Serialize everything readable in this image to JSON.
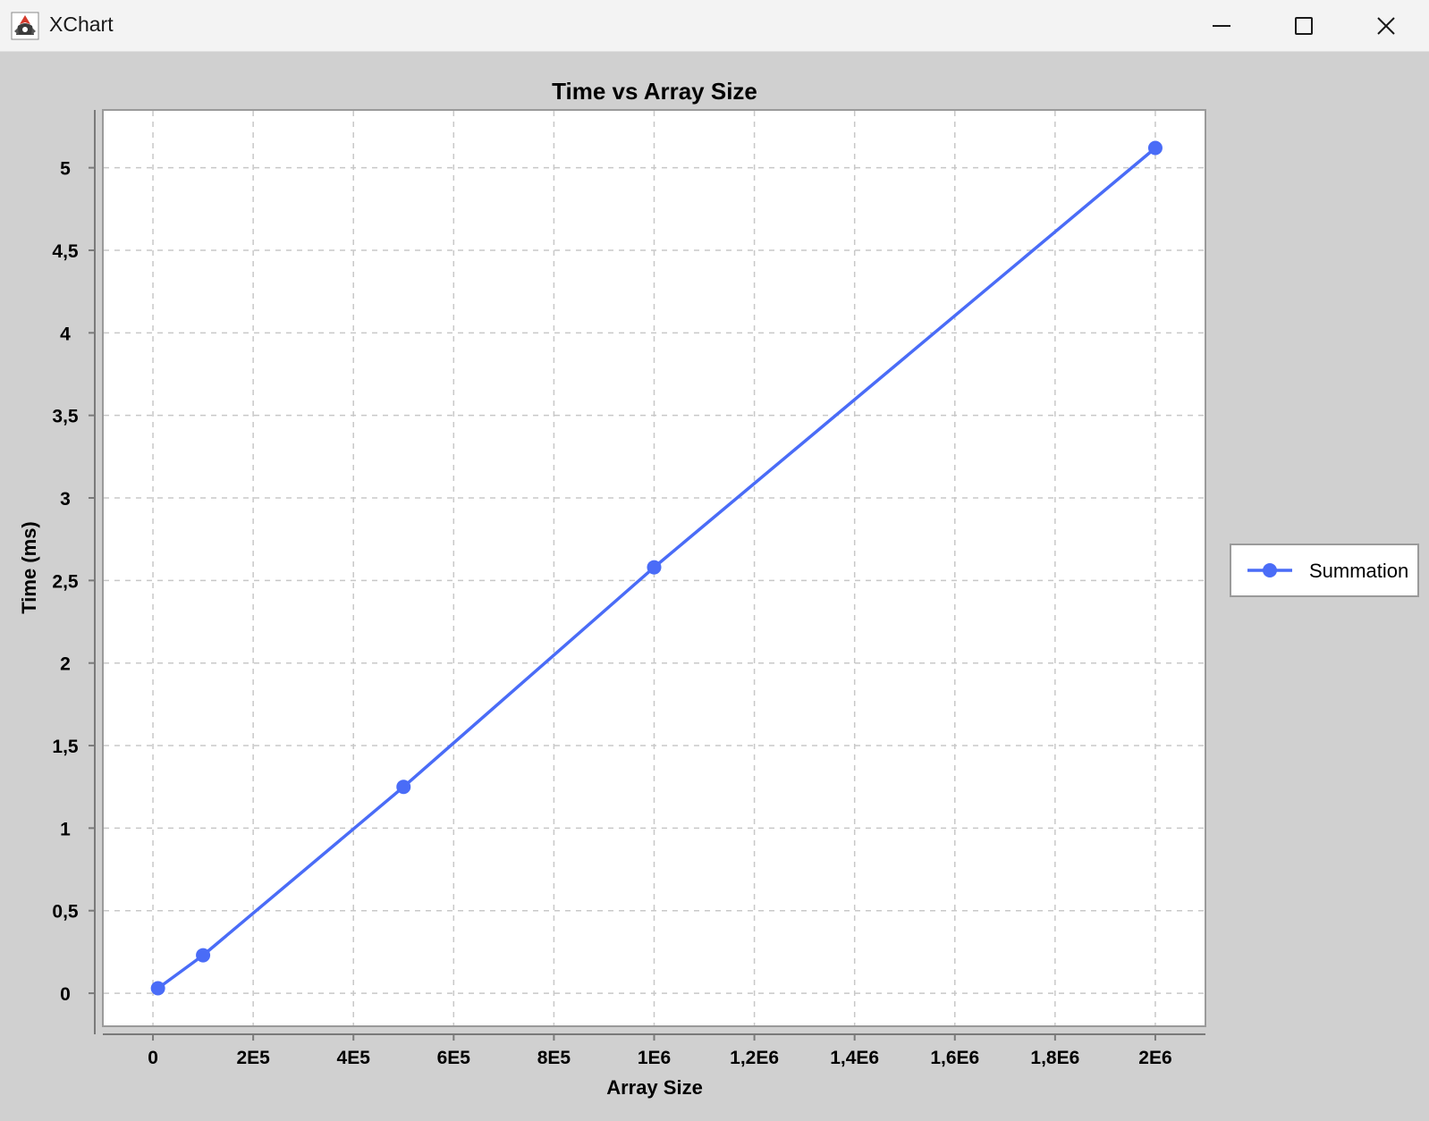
{
  "window": {
    "title": "XChart",
    "icon": "java-duke-icon",
    "controls": [
      "minimize",
      "maximize",
      "close"
    ]
  },
  "colors": {
    "series": "#4a6cf7",
    "plot_background": "#ffffff",
    "chart_background": "#d0d0d0",
    "grid": "#c8c8c8"
  },
  "chart_data": {
    "type": "line",
    "title": "Time vs Array Size",
    "xlabel": "Array Size",
    "ylabel": "Time (ms)",
    "xlim": [
      -100000,
      2100000
    ],
    "ylim": [
      -0.2,
      5.35
    ],
    "x_ticks": [
      0,
      200000,
      400000,
      600000,
      800000,
      1000000,
      1200000,
      1400000,
      1600000,
      1800000,
      2000000
    ],
    "x_tick_labels": [
      "0",
      "2E5",
      "4E5",
      "6E5",
      "8E5",
      "1E6",
      "1,2E6",
      "1,4E6",
      "1,6E6",
      "1,8E6",
      "2E6"
    ],
    "y_ticks": [
      0,
      0.5,
      1,
      1.5,
      2,
      2.5,
      3,
      3.5,
      4,
      4.5,
      5
    ],
    "y_tick_labels": [
      "0",
      "0,5",
      "1",
      "1,5",
      "2",
      "2,5",
      "3",
      "3,5",
      "4",
      "4,5",
      "5"
    ],
    "grid": true,
    "legend_position": "outside-right",
    "series": [
      {
        "name": "Summation",
        "color": "#4a6cf7",
        "marker": "circle",
        "x": [
          10000,
          100000,
          500000,
          1000000,
          2000000
        ],
        "y": [
          0.03,
          0.23,
          1.25,
          2.58,
          5.12
        ]
      }
    ]
  }
}
